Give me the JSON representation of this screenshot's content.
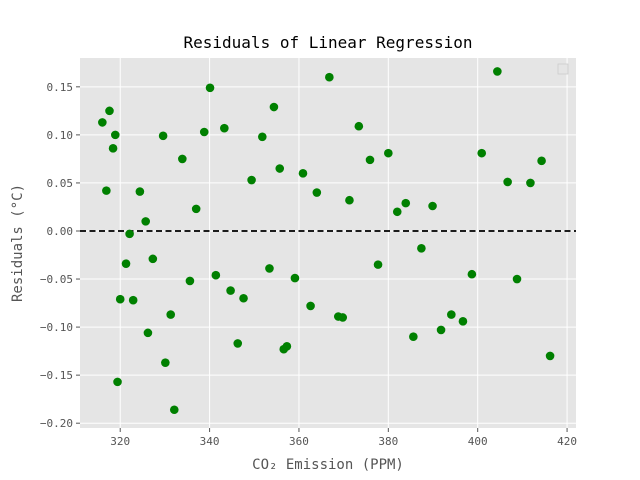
{
  "chart_data": {
    "type": "scatter",
    "title": "Residuals of Linear Regression",
    "xlabel": "CO₂ Emission (PPM)",
    "ylabel": "Residuals (°C)",
    "xlim": [
      311,
      422
    ],
    "ylim": [
      -0.205,
      0.18
    ],
    "xticks": [
      320,
      340,
      360,
      380,
      400,
      420
    ],
    "yticks": [
      -0.2,
      -0.15,
      -0.1,
      -0.05,
      0.0,
      0.05,
      0.1,
      0.15
    ],
    "ytick_labels": [
      "−0.20",
      "−0.15",
      "−0.10",
      "−0.05",
      "0.00",
      "0.05",
      "0.10",
      "0.15"
    ],
    "grid": true,
    "background": "#e5e5e5",
    "grid_color": "#ffffff",
    "point_color": "#008000",
    "reference_line": {
      "y": 0,
      "style": "dashed",
      "color": "#000000"
    },
    "legend": "top-right (empty)",
    "points": [
      {
        "x": 316.0,
        "y": 0.113
      },
      {
        "x": 316.9,
        "y": 0.042
      },
      {
        "x": 317.6,
        "y": 0.125
      },
      {
        "x": 318.4,
        "y": 0.086
      },
      {
        "x": 318.9,
        "y": 0.1
      },
      {
        "x": 319.4,
        "y": -0.157
      },
      {
        "x": 320.0,
        "y": -0.071
      },
      {
        "x": 321.3,
        "y": -0.034
      },
      {
        "x": 322.1,
        "y": -0.003
      },
      {
        "x": 322.9,
        "y": -0.072
      },
      {
        "x": 324.4,
        "y": 0.041
      },
      {
        "x": 325.7,
        "y": 0.01
      },
      {
        "x": 326.2,
        "y": -0.106
      },
      {
        "x": 327.3,
        "y": -0.029
      },
      {
        "x": 329.6,
        "y": 0.099
      },
      {
        "x": 330.1,
        "y": -0.137
      },
      {
        "x": 331.3,
        "y": -0.087
      },
      {
        "x": 332.1,
        "y": -0.186
      },
      {
        "x": 333.9,
        "y": 0.075
      },
      {
        "x": 335.6,
        "y": -0.052
      },
      {
        "x": 337.0,
        "y": 0.023
      },
      {
        "x": 338.8,
        "y": 0.103
      },
      {
        "x": 340.1,
        "y": 0.149
      },
      {
        "x": 341.4,
        "y": -0.046
      },
      {
        "x": 343.3,
        "y": 0.107
      },
      {
        "x": 344.7,
        "y": -0.062
      },
      {
        "x": 346.3,
        "y": -0.117
      },
      {
        "x": 347.6,
        "y": -0.07
      },
      {
        "x": 349.4,
        "y": 0.053
      },
      {
        "x": 351.8,
        "y": 0.098
      },
      {
        "x": 353.4,
        "y": -0.039
      },
      {
        "x": 354.4,
        "y": 0.129
      },
      {
        "x": 355.7,
        "y": 0.065
      },
      {
        "x": 356.6,
        "y": -0.123
      },
      {
        "x": 357.3,
        "y": -0.12
      },
      {
        "x": 359.1,
        "y": -0.049
      },
      {
        "x": 360.9,
        "y": 0.06
      },
      {
        "x": 362.6,
        "y": -0.078
      },
      {
        "x": 364.0,
        "y": 0.04
      },
      {
        "x": 366.8,
        "y": 0.16
      },
      {
        "x": 368.8,
        "y": -0.089
      },
      {
        "x": 369.8,
        "y": -0.09
      },
      {
        "x": 371.3,
        "y": 0.032
      },
      {
        "x": 373.4,
        "y": 0.109
      },
      {
        "x": 375.9,
        "y": 0.074
      },
      {
        "x": 377.7,
        "y": -0.035
      },
      {
        "x": 380.0,
        "y": 0.081
      },
      {
        "x": 382.0,
        "y": 0.02
      },
      {
        "x": 383.9,
        "y": 0.029
      },
      {
        "x": 385.6,
        "y": -0.11
      },
      {
        "x": 387.4,
        "y": -0.018
      },
      {
        "x": 389.9,
        "y": 0.026
      },
      {
        "x": 391.8,
        "y": -0.103
      },
      {
        "x": 394.1,
        "y": -0.087
      },
      {
        "x": 396.7,
        "y": -0.094
      },
      {
        "x": 398.7,
        "y": -0.045
      },
      {
        "x": 400.9,
        "y": 0.081
      },
      {
        "x": 404.4,
        "y": 0.166
      },
      {
        "x": 406.7,
        "y": 0.051
      },
      {
        "x": 408.8,
        "y": -0.05
      },
      {
        "x": 411.8,
        "y": 0.05
      },
      {
        "x": 414.3,
        "y": 0.073
      },
      {
        "x": 416.2,
        "y": -0.13
      }
    ]
  }
}
